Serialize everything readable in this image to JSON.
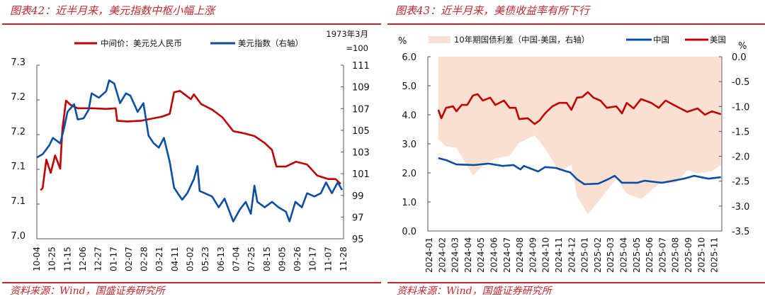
{
  "left": {
    "title": "图表42：近半月来，美元指数中枢小幅上涨",
    "source": "资料来源：Wind，国盛证券研究所",
    "legend": [
      {
        "label": "中间价：美元兑人民币",
        "color": "#c00000"
      },
      {
        "label": "美元指数（右轴）",
        "color": "#0b4ea2"
      }
    ],
    "right_axis_note": [
      "1973年3月",
      "=100"
    ]
  },
  "right": {
    "title": "图表43：近半月来，美债收益率有所下行",
    "source": "资料来源：Wind，国盛证券研究所",
    "legend": [
      {
        "label": "10年期国债利差（中国-美国，右轴）",
        "color": "#f9e0d3"
      },
      {
        "label": "中国",
        "color": "#0b4ea2"
      },
      {
        "label": "美国",
        "color": "#c00000"
      }
    ],
    "left_unit": "%",
    "right_unit": "%"
  },
  "chart_data": [
    {
      "type": "line",
      "title": "近半月来，美元指数中枢小幅上涨",
      "x_ticks": [
        "10-04",
        "10-25",
        "11-15",
        "12-06",
        "12-27",
        "01-17",
        "02-07",
        "02-28",
        "03-21",
        "04-11",
        "05-02",
        "05-23",
        "06-13",
        "07-04",
        "07-25",
        "08-15",
        "09-05",
        "09-26",
        "10-17",
        "11-07",
        "11-28"
      ],
      "xlim": [
        "2024-10-04",
        "2025-11-28"
      ],
      "y_left": {
        "lim": [
          7.0,
          7.25
        ],
        "tick_labels": [
          "7.0",
          "7.1",
          "7.1",
          "7.2",
          "7.2",
          "7.3"
        ]
      },
      "y_right": {
        "lim": [
          95,
          111
        ],
        "tick_labels": [
          "95",
          "97",
          "99",
          "101",
          "103",
          "105",
          "107",
          "109",
          "111"
        ]
      },
      "grid": false,
      "legend_position": "top",
      "series": [
        {
          "name": "中间价：美元兑人民币",
          "axis": "left",
          "color": "#c00000",
          "x": [
            "2024-10-09",
            "2024-10-12",
            "2024-10-17",
            "2024-10-23",
            "2024-10-29",
            "2024-11-05",
            "2024-11-08",
            "2024-11-13",
            "2024-11-19",
            "2024-11-29",
            "2024-12-18",
            "2025-01-07",
            "2025-01-20",
            "2025-01-22",
            "2025-02-05",
            "2025-02-24",
            "2025-03-25",
            "2025-04-04",
            "2025-04-10",
            "2025-04-18",
            "2025-05-03",
            "2025-05-07",
            "2025-05-17",
            "2025-06-01",
            "2025-06-15",
            "2025-06-30",
            "2025-07-14",
            "2025-07-29",
            "2025-08-12",
            "2025-08-22",
            "2025-08-28",
            "2025-09-10",
            "2025-09-24",
            "2025-10-09",
            "2025-10-23",
            "2025-11-07",
            "2025-11-17",
            "2025-11-24"
          ],
          "y": [
            7.07,
            7.073,
            7.114,
            7.095,
            7.12,
            7.101,
            7.158,
            7.199,
            7.193,
            7.188,
            7.188,
            7.187,
            7.188,
            7.17,
            7.169,
            7.17,
            7.176,
            7.18,
            7.211,
            7.213,
            7.201,
            7.208,
            7.194,
            7.186,
            7.175,
            7.155,
            7.152,
            7.148,
            7.138,
            7.128,
            7.104,
            7.104,
            7.111,
            7.107,
            7.091,
            7.086,
            7.086,
            7.079
          ]
        },
        {
          "name": "美元指数（右轴）",
          "axis": "right",
          "color": "#0b4ea2",
          "x": [
            "2024-10-04",
            "2024-10-12",
            "2024-10-21",
            "2024-10-26",
            "2024-11-05",
            "2024-11-10",
            "2024-11-15",
            "2024-11-24",
            "2024-11-29",
            "2024-12-07",
            "2024-12-14",
            "2024-12-18",
            "2024-12-28",
            "2025-01-07",
            "2025-01-11",
            "2025-01-18",
            "2025-01-26",
            "2025-02-03",
            "2025-02-09",
            "2025-02-19",
            "2025-02-27",
            "2025-03-06",
            "2025-03-13",
            "2025-03-20",
            "2025-03-27",
            "2025-04-04",
            "2025-04-10",
            "2025-04-21",
            "2025-04-28",
            "2025-05-07",
            "2025-05-12",
            "2025-05-15",
            "2025-05-22",
            "2025-06-01",
            "2025-06-10",
            "2025-06-18",
            "2025-06-30",
            "2025-07-09",
            "2025-07-17",
            "2025-07-24",
            "2025-07-29",
            "2025-08-02",
            "2025-08-12",
            "2025-08-22",
            "2025-08-31",
            "2025-09-10",
            "2025-09-15",
            "2025-09-23",
            "2025-10-02",
            "2025-10-09",
            "2025-10-19",
            "2025-10-28",
            "2025-11-04",
            "2025-11-12",
            "2025-11-20",
            "2025-11-26"
          ],
          "y": [
            102.5,
            102.8,
            103.6,
            104.3,
            103.8,
            105.1,
            106.7,
            107.4,
            106.0,
            106.1,
            106.9,
            108.4,
            108.0,
            108.6,
            109.6,
            109.3,
            107.5,
            108.4,
            108.2,
            106.7,
            107.5,
            104.5,
            103.8,
            103.4,
            104.3,
            102.1,
            99.7,
            98.6,
            99.2,
            100.5,
            101.7,
            99.4,
            99.2,
            98.9,
            97.9,
            98.7,
            96.6,
            97.7,
            98.4,
            97.3,
            99.9,
            98.4,
            97.9,
            98.4,
            97.9,
            97.5,
            96.6,
            98.4,
            97.9,
            99.2,
            98.9,
            99.2,
            100.2,
            99.2,
            100.2,
            99.5
          ]
        }
      ]
    },
    {
      "type": "line",
      "title": "近半月来，美债收益率有所下行",
      "x_ticks": [
        "2024-01",
        "2024-02",
        "2024-03",
        "2024-04",
        "2024-05",
        "2024-06",
        "2024-07",
        "2024-08",
        "2024-09",
        "2024-10",
        "2024-11",
        "2024-12",
        "2025-01",
        "2025-02",
        "2025-03",
        "2025-04",
        "2025-05",
        "2025-06",
        "2025-07",
        "2025-08",
        "2025-09",
        "2025-10",
        "2025-11"
      ],
      "y_left": {
        "unit": "%",
        "lim": [
          0,
          6
        ],
        "tick_labels": [
          "0.0",
          "1.0",
          "2.0",
          "3.0",
          "4.0",
          "5.0",
          "6.0"
        ]
      },
      "y_right": {
        "unit": "%",
        "lim": [
          -3.5,
          0
        ],
        "tick_labels": [
          "-3.5",
          "-3.0",
          "-2.5",
          "-2.0",
          "-1.5",
          "-1.0",
          "-0.5",
          "0.0"
        ]
      },
      "grid": false,
      "legend_position": "top",
      "series": [
        {
          "name": "10年期国债利差（中国-美国，右轴）",
          "axis": "right",
          "type": "area",
          "color": "#f9e0d3",
          "x": [
            "2024-01-22",
            "2024-02-10",
            "2024-03-04",
            "2024-04-12",
            "2024-05-05",
            "2024-06-04",
            "2024-07-07",
            "2024-07-29",
            "2024-09-05",
            "2024-09-29",
            "2024-11-02",
            "2024-11-30",
            "2024-12-13",
            "2025-01-08",
            "2025-02-07",
            "2025-03-14",
            "2025-04-08",
            "2025-05-11",
            "2025-06-22",
            "2025-08-03",
            "2025-08-28",
            "2025-09-22",
            "2025-10-25",
            "2025-11-16"
          ],
          "y": [
            -1.66,
            -1.8,
            -1.83,
            -2.39,
            -2.19,
            -2.04,
            -1.99,
            -1.73,
            -1.58,
            -1.85,
            -2.31,
            -2.17,
            -2.81,
            -3.16,
            -2.86,
            -2.44,
            -2.75,
            -2.86,
            -2.56,
            -2.53,
            -2.28,
            -2.34,
            -2.3,
            -2.17
          ]
        },
        {
          "name": "中国",
          "axis": "left",
          "color": "#0b4ea2",
          "x": [
            "2024-01-22",
            "2024-02-10",
            "2024-03-04",
            "2024-04-15",
            "2024-05-18",
            "2024-06-21",
            "2024-07-16",
            "2024-08-02",
            "2024-08-10",
            "2024-09-13",
            "2024-09-29",
            "2024-10-24",
            "2024-11-19",
            "2024-11-27",
            "2024-12-13",
            "2024-12-30",
            "2025-02-02",
            "2025-02-25",
            "2025-03-10",
            "2025-03-27",
            "2025-05-03",
            "2025-05-19",
            "2025-06-30",
            "2025-07-25",
            "2025-08-20",
            "2025-09-14",
            "2025-10-17",
            "2025-11-16"
          ],
          "y": [
            2.51,
            2.44,
            2.29,
            2.27,
            2.32,
            2.24,
            2.27,
            2.12,
            2.24,
            2.05,
            2.2,
            2.17,
            2.05,
            2.02,
            1.78,
            1.61,
            1.63,
            1.78,
            1.9,
            1.66,
            1.66,
            1.73,
            1.66,
            1.73,
            1.8,
            1.9,
            1.8,
            1.85
          ]
        },
        {
          "name": "美国",
          "axis": "left",
          "color": "#c00000",
          "x": [
            "2024-01-22",
            "2024-01-29",
            "2024-02-10",
            "2024-02-26",
            "2024-03-04",
            "2024-03-16",
            "2024-03-29",
            "2024-04-12",
            "2024-04-23",
            "2024-05-05",
            "2024-05-22",
            "2024-06-04",
            "2024-06-24",
            "2024-07-07",
            "2024-07-21",
            "2024-07-29",
            "2024-08-19",
            "2024-09-05",
            "2024-09-16",
            "2024-09-29",
            "2024-10-16",
            "2024-11-02",
            "2024-11-19",
            "2024-11-30",
            "2024-12-13",
            "2024-12-25",
            "2025-01-08",
            "2025-01-21",
            "2025-02-07",
            "2025-02-22",
            "2025-03-14",
            "2025-03-27",
            "2025-04-08",
            "2025-04-24",
            "2025-05-11",
            "2025-06-05",
            "2025-06-22",
            "2025-07-08",
            "2025-08-03",
            "2025-08-28",
            "2025-09-22",
            "2025-10-09",
            "2025-10-25",
            "2025-11-16"
          ],
          "y": [
            4.17,
            3.88,
            4.24,
            4.29,
            4.12,
            4.34,
            4.34,
            4.66,
            4.71,
            4.49,
            4.59,
            4.34,
            4.49,
            4.24,
            4.24,
            3.85,
            3.88,
            3.68,
            3.8,
            4.05,
            4.29,
            4.41,
            4.41,
            4.17,
            4.59,
            4.61,
            4.78,
            4.59,
            4.49,
            4.24,
            4.29,
            4.05,
            4.41,
            4.22,
            4.54,
            4.41,
            4.24,
            4.49,
            4.29,
            4.1,
            4.22,
            4.0,
            4.12,
            4.02
          ]
        }
      ]
    }
  ]
}
